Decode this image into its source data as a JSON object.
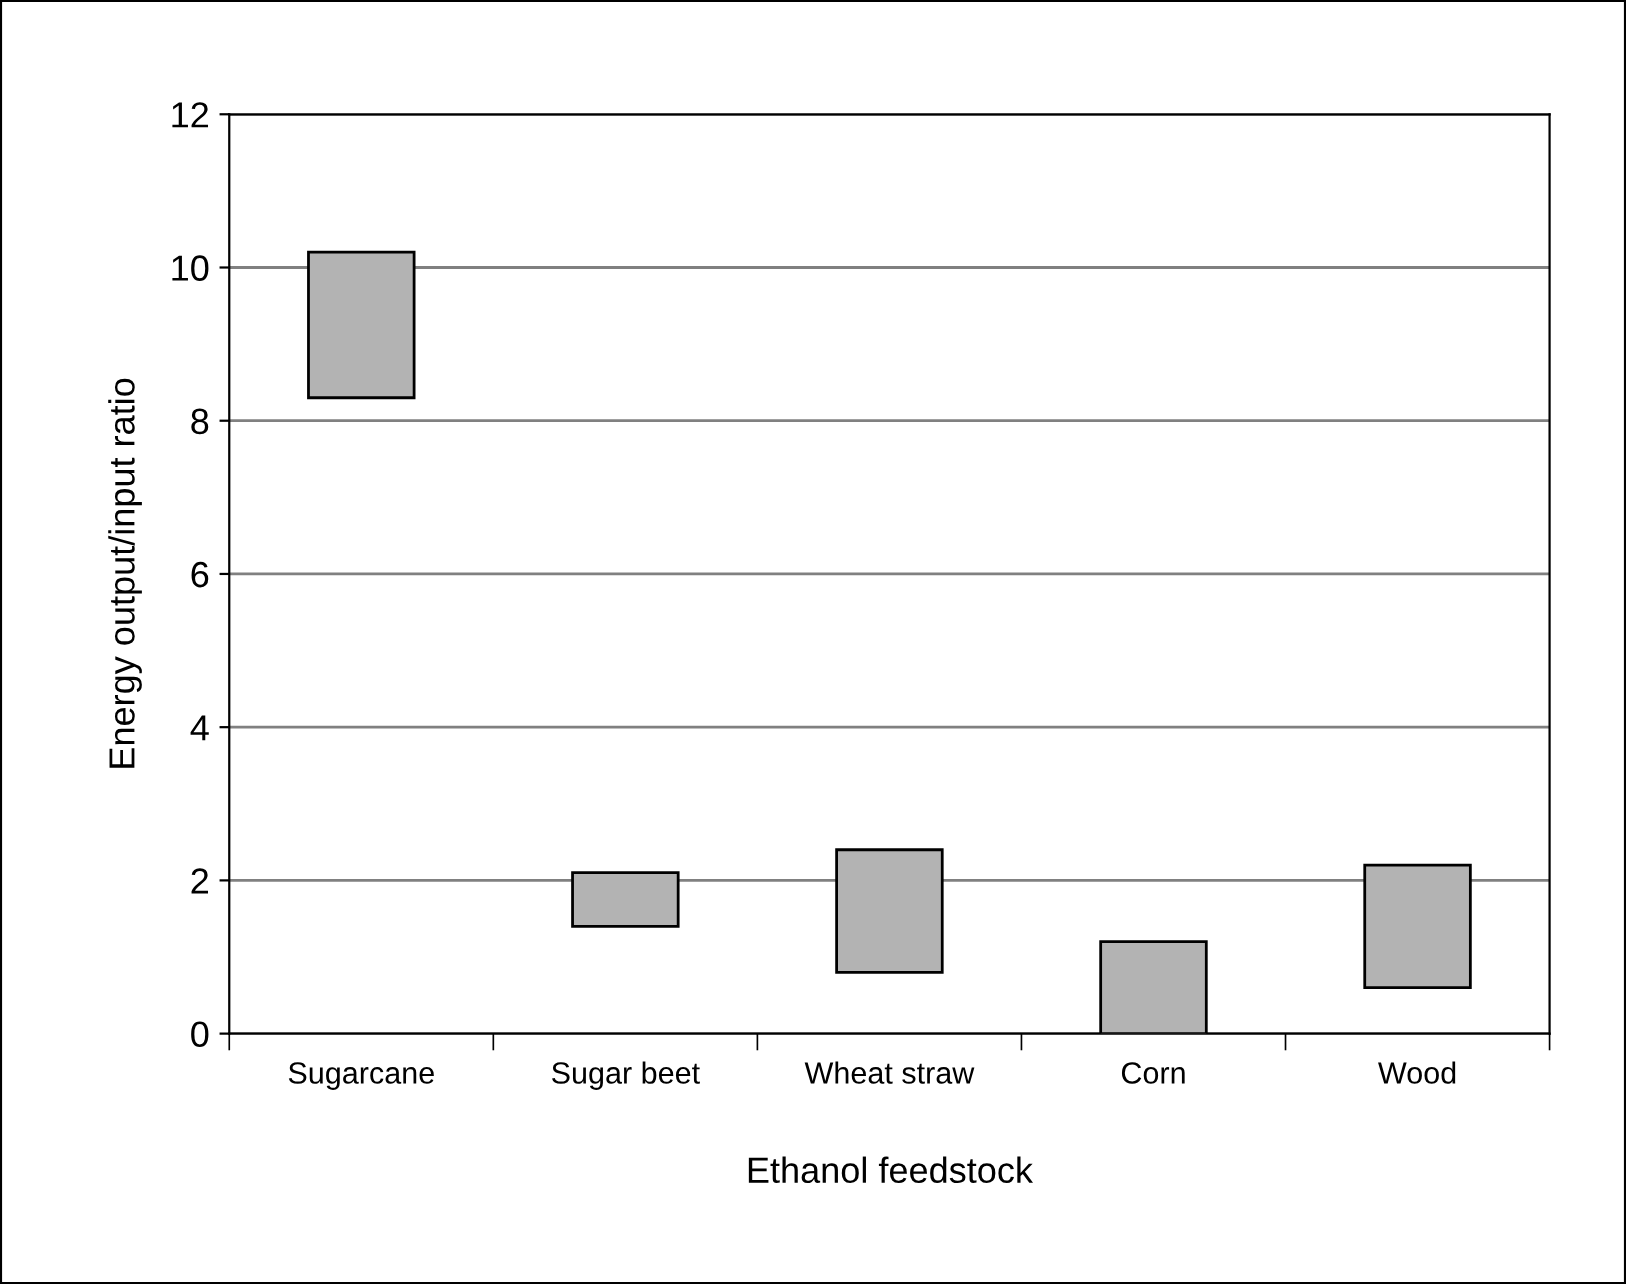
{
  "chart_data": {
    "type": "bar",
    "xlabel": "Ethanol feedstock",
    "ylabel": "Energy output/input ratio",
    "categories": [
      "Sugarcane",
      "Sugar beet",
      "Wheat straw",
      "Corn",
      "Wood"
    ],
    "base": [
      8.3,
      1.4,
      0.8,
      0,
      0.6
    ],
    "values": [
      1.9,
      0.7,
      1.6,
      1.2,
      1.6
    ],
    "color": "#b3b3b3",
    "ylim": [
      0,
      12
    ],
    "yticks": [
      0,
      2,
      4,
      6,
      8,
      10,
      12
    ],
    "grid": "y"
  }
}
